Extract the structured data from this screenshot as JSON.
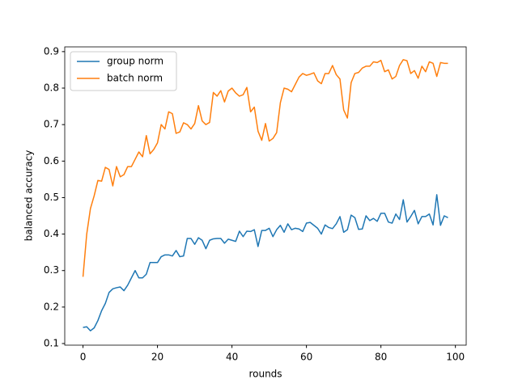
{
  "chart_data": {
    "type": "line",
    "xlabel": "rounds",
    "ylabel": "balanced accuracy",
    "x": [
      0,
      1,
      2,
      3,
      4,
      5,
      6,
      7,
      8,
      9,
      10,
      11,
      12,
      13,
      14,
      15,
      16,
      17,
      18,
      19,
      20,
      21,
      22,
      23,
      24,
      25,
      26,
      27,
      28,
      29,
      30,
      31,
      32,
      33,
      34,
      35,
      36,
      37,
      38,
      39,
      40,
      41,
      42,
      43,
      44,
      45,
      46,
      47,
      48,
      49,
      50,
      51,
      52,
      53,
      54,
      55,
      56,
      57,
      58,
      59,
      60,
      61,
      62,
      63,
      64,
      65,
      66,
      67,
      68,
      69,
      70,
      71,
      72,
      73,
      74,
      75,
      76,
      77,
      78,
      79,
      80,
      81,
      82,
      83,
      84,
      85,
      86,
      87,
      88,
      89,
      90,
      91,
      92,
      93,
      94,
      95,
      96,
      97,
      98
    ],
    "series": [
      {
        "name": "group norm",
        "color": "#1f77b4",
        "values": [
          0.144,
          0.146,
          0.135,
          0.143,
          0.163,
          0.19,
          0.21,
          0.24,
          0.25,
          0.253,
          0.255,
          0.245,
          0.26,
          0.28,
          0.3,
          0.28,
          0.28,
          0.29,
          0.322,
          0.322,
          0.322,
          0.338,
          0.343,
          0.343,
          0.34,
          0.355,
          0.338,
          0.34,
          0.388,
          0.388,
          0.372,
          0.39,
          0.383,
          0.36,
          0.383,
          0.387,
          0.388,
          0.388,
          0.375,
          0.386,
          0.383,
          0.38,
          0.408,
          0.393,
          0.408,
          0.407,
          0.412,
          0.366,
          0.41,
          0.41,
          0.416,
          0.393,
          0.412,
          0.424,
          0.405,
          0.428,
          0.412,
          0.416,
          0.414,
          0.407,
          0.43,
          0.432,
          0.424,
          0.416,
          0.4,
          0.425,
          0.418,
          0.415,
          0.428,
          0.448,
          0.405,
          0.412,
          0.452,
          0.445,
          0.413,
          0.414,
          0.45,
          0.437,
          0.443,
          0.435,
          0.457,
          0.457,
          0.433,
          0.43,
          0.455,
          0.44,
          0.494,
          0.433,
          0.448,
          0.465,
          0.428,
          0.448,
          0.448,
          0.455,
          0.425,
          0.508,
          0.424,
          0.45,
          0.445
        ]
      },
      {
        "name": "batch norm",
        "color": "#ff7f0e",
        "values": [
          0.283,
          0.4,
          0.47,
          0.505,
          0.547,
          0.545,
          0.583,
          0.577,
          0.532,
          0.585,
          0.557,
          0.563,
          0.585,
          0.585,
          0.605,
          0.625,
          0.612,
          0.67,
          0.62,
          0.632,
          0.65,
          0.7,
          0.688,
          0.735,
          0.73,
          0.676,
          0.68,
          0.705,
          0.7,
          0.688,
          0.703,
          0.752,
          0.71,
          0.7,
          0.706,
          0.788,
          0.778,
          0.793,
          0.762,
          0.792,
          0.8,
          0.787,
          0.778,
          0.782,
          0.802,
          0.735,
          0.748,
          0.682,
          0.657,
          0.703,
          0.655,
          0.662,
          0.678,
          0.76,
          0.8,
          0.797,
          0.79,
          0.81,
          0.83,
          0.84,
          0.835,
          0.838,
          0.842,
          0.82,
          0.812,
          0.84,
          0.84,
          0.862,
          0.837,
          0.825,
          0.74,
          0.718,
          0.815,
          0.84,
          0.843,
          0.855,
          0.86,
          0.86,
          0.872,
          0.87,
          0.876,
          0.845,
          0.85,
          0.825,
          0.832,
          0.862,
          0.878,
          0.875,
          0.84,
          0.848,
          0.827,
          0.86,
          0.845,
          0.872,
          0.868,
          0.832,
          0.87,
          0.868,
          0.868
        ]
      }
    ],
    "xlim": [
      -4.9,
      102.9
    ],
    "xticks": [
      0,
      20,
      40,
      60,
      80,
      100
    ],
    "ylim": [
      0.0956,
      0.913
    ],
    "yticks": [
      0.1,
      0.2,
      0.3,
      0.4,
      0.5,
      0.6,
      0.7,
      0.8,
      0.9
    ],
    "legend": "upper left",
    "grid": false
  }
}
